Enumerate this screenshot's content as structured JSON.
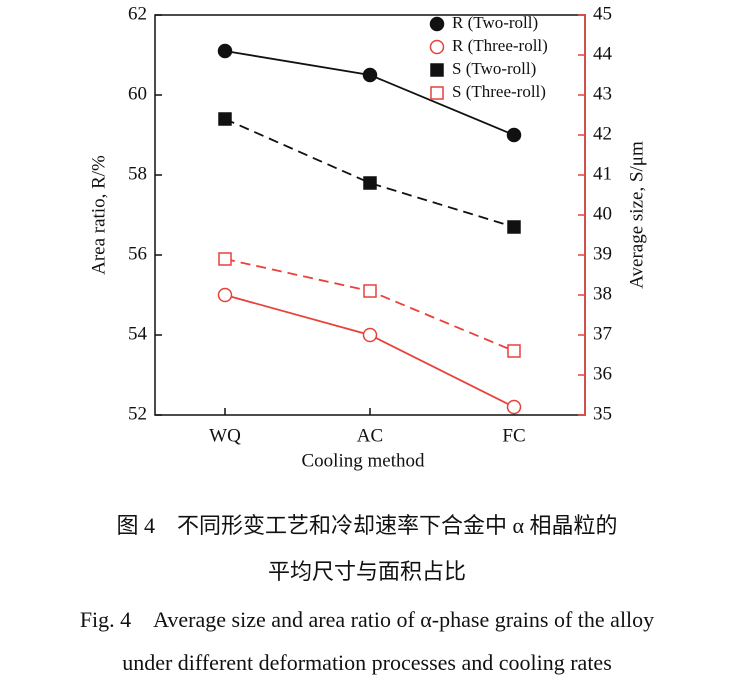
{
  "chart_data": {
    "type": "line",
    "xlabel": "Cooling method",
    "ylabel": "Area ratio, R/%",
    "y2label": "Average size, S/μm",
    "categories": [
      "WQ",
      "AC",
      "FC"
    ],
    "ylim": [
      52,
      62
    ],
    "yticks": [
      52,
      54,
      56,
      58,
      60,
      62
    ],
    "y2lim": [
      35,
      45
    ],
    "y2ticks": [
      35,
      36,
      37,
      38,
      39,
      40,
      41,
      42,
      43,
      44,
      45
    ],
    "y2color": "#e8413a",
    "series": [
      {
        "name": "R (Two-roll)",
        "color": "#111111",
        "marker": "circle",
        "filled": true,
        "dashed": false,
        "values": [
          61.1,
          60.5,
          59.0
        ]
      },
      {
        "name": "R (Three-roll)",
        "color": "#e8413a",
        "marker": "circle",
        "filled": false,
        "dashed": false,
        "values": [
          55.0,
          54.0,
          52.2
        ]
      },
      {
        "name": "S (Two-roll)",
        "color": "#111111",
        "marker": "square",
        "filled": true,
        "dashed": true,
        "axis": "y2",
        "values": [
          42.4,
          40.8,
          39.7
        ]
      },
      {
        "name": "S (Three-roll)",
        "color": "#e8413a",
        "marker": "square",
        "filled": false,
        "dashed": true,
        "axis": "y2",
        "values": [
          38.9,
          38.1,
          36.6
        ]
      }
    ],
    "caption_zh": [
      "图 4　不同形变工艺和冷却速率下合金中 α 相晶粒的",
      "平均尺寸与面积占比"
    ],
    "caption_en": [
      "Fig. 4　Average size and area ratio of α-phase grains of the alloy",
      "under different deformation processes and cooling rates"
    ]
  }
}
